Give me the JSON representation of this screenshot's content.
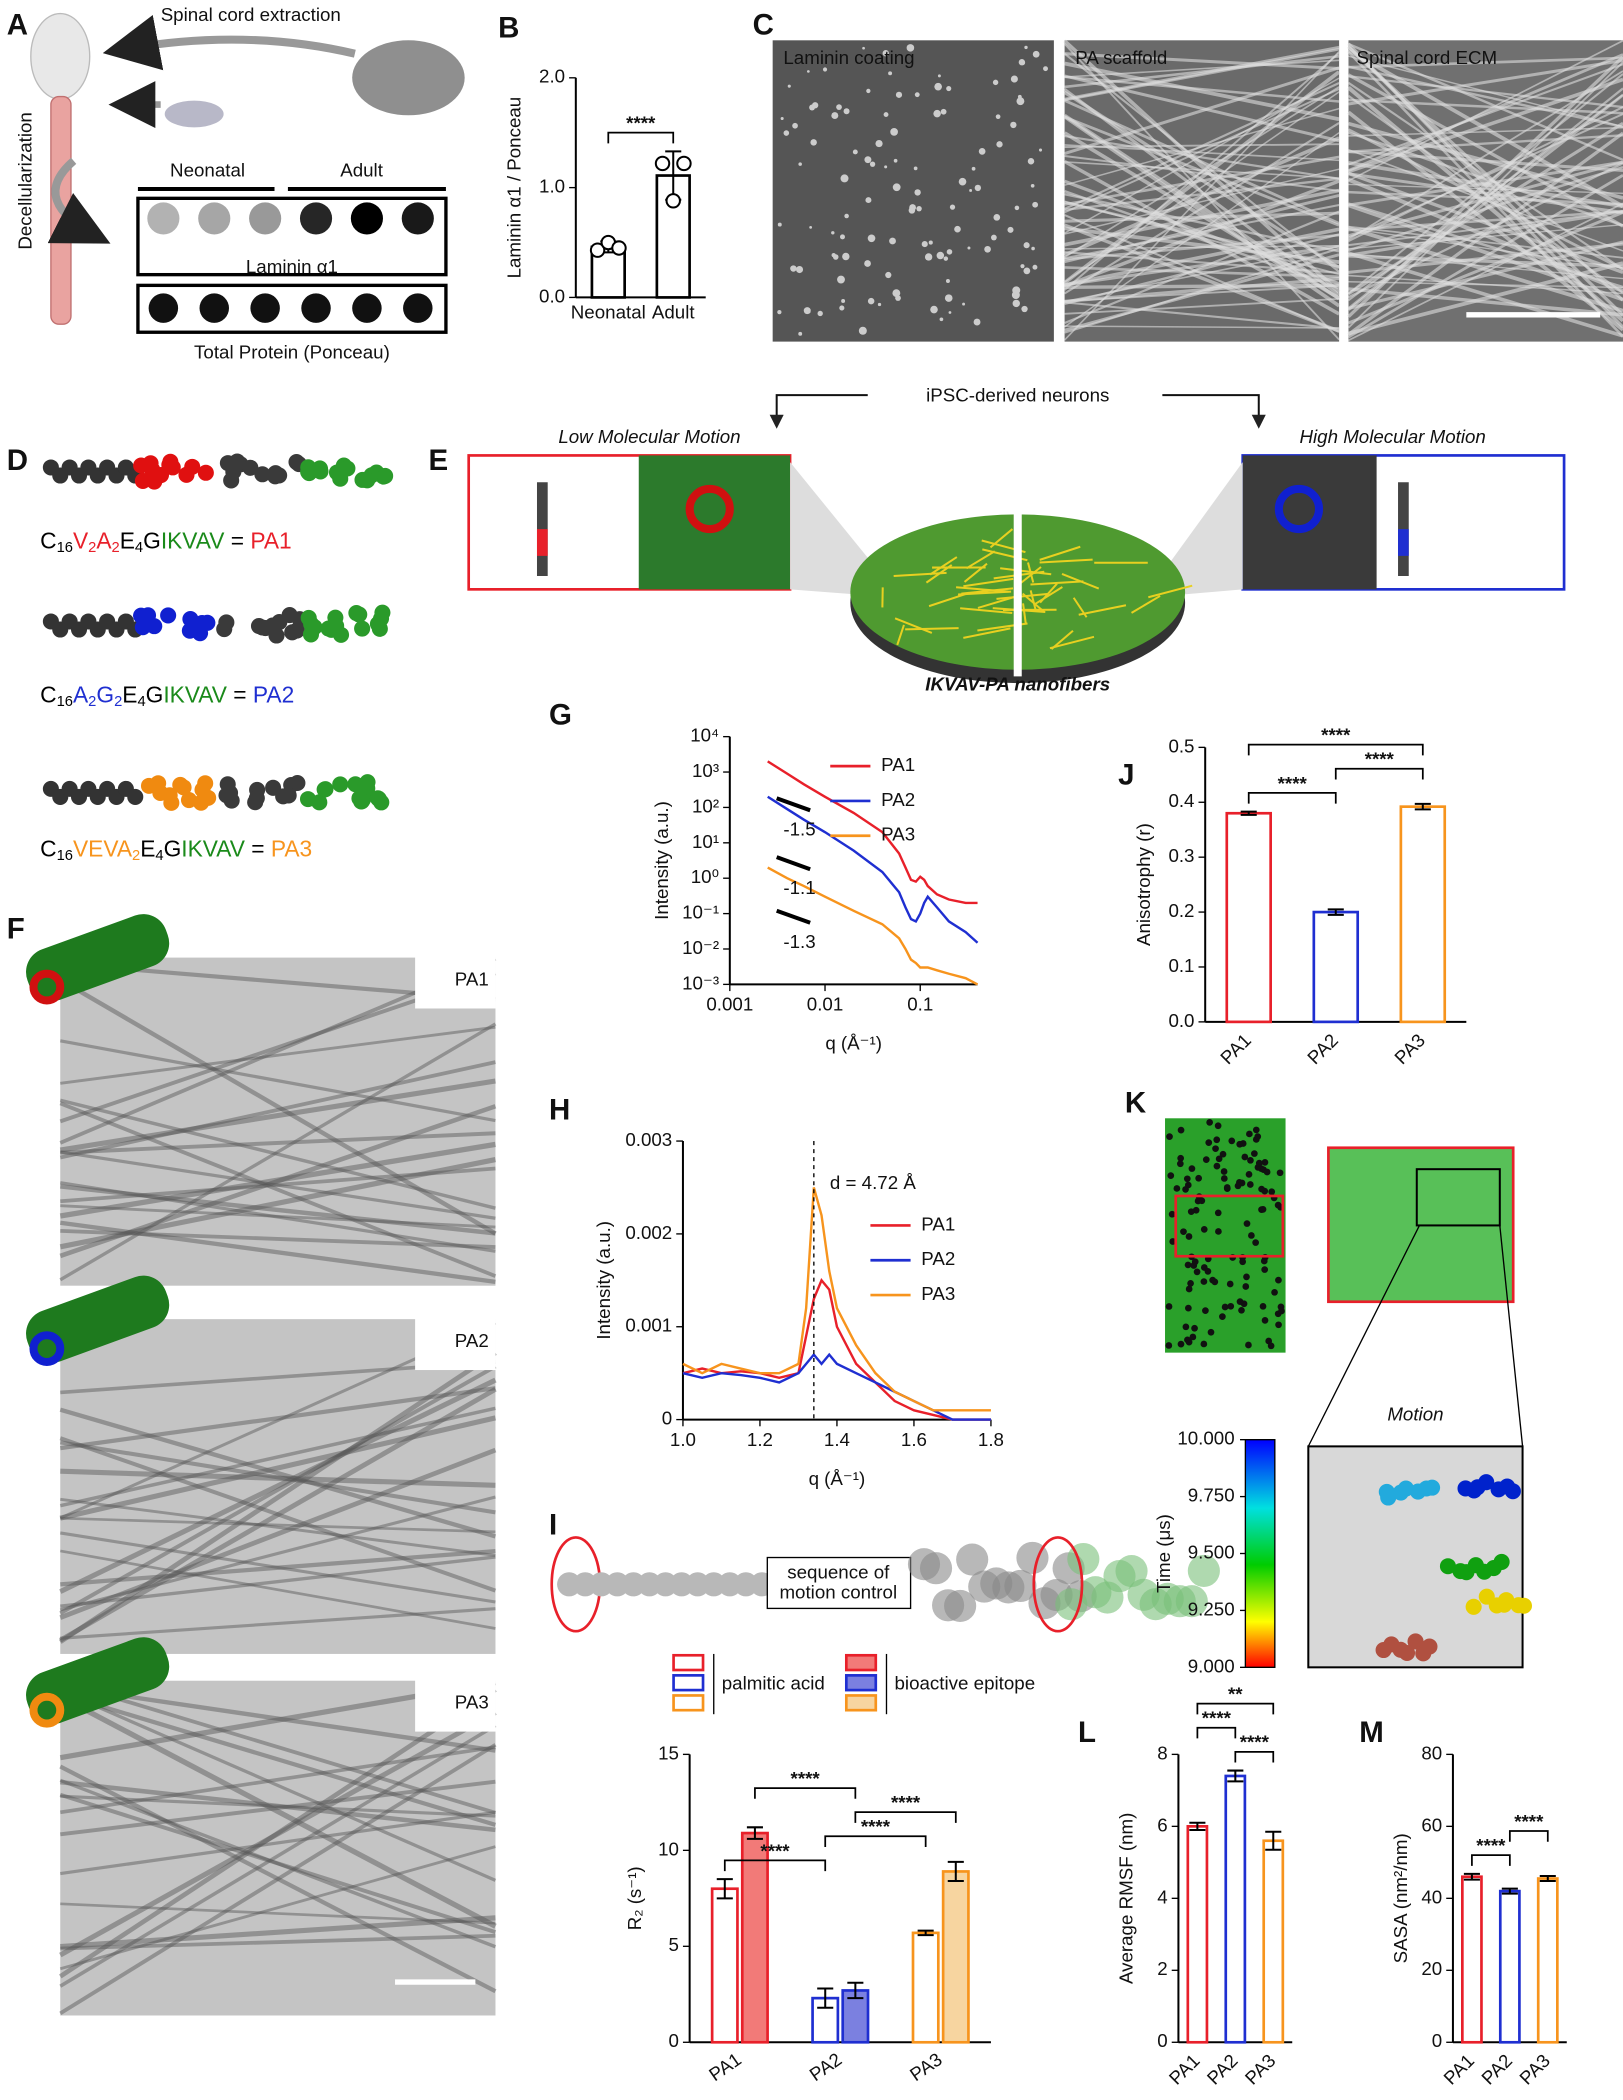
{
  "figure": {
    "panel_labels": [
      "A",
      "B",
      "C",
      "D",
      "E",
      "F",
      "G",
      "H",
      "I",
      "J",
      "K",
      "L",
      "M"
    ],
    "a": {
      "title": "Spinal cord extraction",
      "side": "Decellularization",
      "groups": [
        "Neonatal",
        "Adult"
      ],
      "blot_labels": [
        "Laminin α1",
        "Total Protein (Ponceau)"
      ]
    },
    "c": {
      "labels": [
        "Laminin coating",
        "PA scaffold",
        "Spinal cord ECM"
      ]
    },
    "d": {
      "sequences": [
        [
          {
            "text": "C",
            "color": "#000000"
          },
          {
            "text": "16",
            "color": "#000000",
            "sub": true
          },
          {
            "text": "V",
            "color": "#e8202a"
          },
          {
            "text": "2",
            "color": "#e8202a",
            "sub": true
          },
          {
            "text": "A",
            "color": "#e8202a"
          },
          {
            "text": "2",
            "color": "#e8202a",
            "sub": true
          },
          {
            "text": "E",
            "color": "#000000"
          },
          {
            "text": "4",
            "color": "#000000",
            "sub": true
          },
          {
            "text": "G",
            "color": "#000000"
          },
          {
            "text": "IKVAV",
            "color": "#1a8a1a"
          },
          {
            "text": " = ",
            "color": "#000000"
          },
          {
            "text": "PA1",
            "color": "#e8202a"
          }
        ],
        [
          {
            "text": "C",
            "color": "#000000"
          },
          {
            "text": "16",
            "color": "#000000",
            "sub": true
          },
          {
            "text": "A",
            "color": "#1f2fd1"
          },
          {
            "text": "2",
            "color": "#1f2fd1",
            "sub": true
          },
          {
            "text": "G",
            "color": "#1f2fd1"
          },
          {
            "text": "2",
            "color": "#1f2fd1",
            "sub": true
          },
          {
            "text": "E",
            "color": "#000000"
          },
          {
            "text": "4",
            "color": "#000000",
            "sub": true
          },
          {
            "text": "G",
            "color": "#000000"
          },
          {
            "text": "IKVAV",
            "color": "#1a8a1a"
          },
          {
            "text": " = ",
            "color": "#000000"
          },
          {
            "text": "PA2",
            "color": "#1f2fd1"
          }
        ],
        [
          {
            "text": "C",
            "color": "#000000"
          },
          {
            "text": "16",
            "color": "#000000",
            "sub": true
          },
          {
            "text": "VEVA",
            "color": "#f7941d"
          },
          {
            "text": "2",
            "color": "#f7941d",
            "sub": true
          },
          {
            "text": "E",
            "color": "#000000"
          },
          {
            "text": "4",
            "color": "#000000",
            "sub": true
          },
          {
            "text": "G",
            "color": "#000000"
          },
          {
            "text": "IKVAV",
            "color": "#1a8a1a"
          },
          {
            "text": " = ",
            "color": "#000000"
          },
          {
            "text": "PA3",
            "color": "#f7941d"
          }
        ]
      ]
    },
    "e": {
      "top": "iPSC-derived neurons",
      "left": "Low Molecular Motion",
      "right": "High Molecular Motion",
      "bottom": "IKVAV-PA nanofibers"
    },
    "f": {
      "labels": [
        "PA1",
        "PA2",
        "PA3"
      ]
    },
    "i": {
      "box": [
        "sequence of",
        "motion control"
      ]
    },
    "k": {
      "title": "Motion",
      "colorbar_label": "Time (μs)",
      "colorbar_lim": [
        9,
        10
      ],
      "colorbar_ticks": [
        {
          "value": 10,
          "label": "10.000"
        },
        {
          "value": 9.75,
          "label": "9.750"
        },
        {
          "value": 9.5,
          "label": "9.500"
        },
        {
          "value": 9.25,
          "label": "9.250"
        },
        {
          "value": 9,
          "label": "9.000"
        }
      ]
    }
  },
  "chart_data": [
    {
      "type": "bar",
      "ylabel": "Laminin α1 / Ponceau",
      "categories": [
        "Neonatal",
        "Adult"
      ],
      "values": [
        0.46,
        1.11
      ],
      "errors": [
        0.05,
        0.22
      ],
      "points": [
        [
          0.43,
          0.5,
          0.45
        ],
        [
          1.22,
          0.88,
          1.22
        ]
      ],
      "ylim": [
        0,
        2
      ],
      "yticks": [
        {
          "value": 0,
          "label": "0.0"
        },
        {
          "value": 1,
          "label": "1.0"
        },
        {
          "value": 2,
          "label": "2.0"
        }
      ],
      "colors": [
        "#000000",
        "#000000"
      ],
      "bar_style": "outline",
      "significance": [
        {
          "label": "****",
          "from": 0,
          "to": 1
        }
      ]
    },
    {
      "type": "line",
      "xlabel": "q (Å⁻¹)",
      "ylabel": "Intensity (a.u.)",
      "log_x": true,
      "log_y": true,
      "x": [
        0.0025,
        0.004,
        0.006,
        0.01,
        0.02,
        0.04,
        0.06,
        0.07,
        0.08,
        0.09,
        0.1,
        0.11,
        0.12,
        0.15,
        0.2,
        0.3,
        0.4
      ],
      "series": [
        {
          "name": "PA1",
          "color": "#e8202a",
          "values": [
            2000,
            900,
            450,
            200,
            70,
            20,
            5,
            2,
            0.9,
            0.8,
            1.1,
            0.9,
            0.6,
            0.35,
            0.25,
            0.2,
            0.2
          ]
        },
        {
          "name": "PA2",
          "color": "#1f2fd1",
          "values": [
            200,
            90,
            45,
            20,
            6,
            1.5,
            0.4,
            0.15,
            0.07,
            0.06,
            0.1,
            0.2,
            0.3,
            0.15,
            0.06,
            0.03,
            0.015
          ]
        },
        {
          "name": "PA3",
          "color": "#f7941d",
          "values": [
            2,
            1,
            0.6,
            0.3,
            0.12,
            0.05,
            0.02,
            0.01,
            0.005,
            0.004,
            0.003,
            0.003,
            0.003,
            0.0025,
            0.002,
            0.0015,
            0.001
          ]
        }
      ],
      "xlim": [
        0.001,
        0.4
      ],
      "ylim": [
        0.001,
        10000
      ],
      "xticks": [
        0.001,
        0.01,
        0.1
      ],
      "yticks": [
        {
          "value": 0.001,
          "label": "10⁻³"
        },
        {
          "value": 0.01,
          "label": "10⁻²"
        },
        {
          "value": 0.1,
          "label": "10⁻¹"
        },
        {
          "value": 1,
          "label": "10⁰"
        },
        {
          "value": 10,
          "label": "10¹"
        },
        {
          "value": 100,
          "label": "10²"
        },
        {
          "value": 1000,
          "label": "10³"
        },
        {
          "value": 10000,
          "label": "10⁴"
        }
      ],
      "annotations": [
        "-1.5",
        "-1.1",
        "-1.3"
      ]
    },
    {
      "type": "line",
      "xlabel": "q (Å⁻¹)",
      "ylabel": "Intensity (a.u.)",
      "x": [
        1.0,
        1.05,
        1.1,
        1.15,
        1.2,
        1.25,
        1.3,
        1.32,
        1.34,
        1.36,
        1.38,
        1.4,
        1.45,
        1.5,
        1.55,
        1.6,
        1.65,
        1.7,
        1.75,
        1.8
      ],
      "series": [
        {
          "name": "PA1",
          "color": "#e8202a",
          "values": [
            0.0005,
            0.00055,
            0.0005,
            0.00052,
            0.0005,
            0.00045,
            0.0005,
            0.0009,
            0.0013,
            0.0015,
            0.0014,
            0.001,
            0.0006,
            0.0004,
            0.0002,
            0.0001,
            5e-05,
            0,
            0,
            0
          ]
        },
        {
          "name": "PA2",
          "color": "#1f2fd1",
          "values": [
            0.0005,
            0.00045,
            0.0005,
            0.00048,
            0.00045,
            0.0004,
            0.0005,
            0.0006,
            0.0007,
            0.0006,
            0.0007,
            0.0006,
            0.0005,
            0.0004,
            0.0003,
            0.0002,
            0.0001,
            0,
            0,
            0
          ]
        },
        {
          "name": "PA3",
          "color": "#f7941d",
          "values": [
            0.0006,
            0.0005,
            0.0006,
            0.00055,
            0.0005,
            0.0005,
            0.0006,
            0.0012,
            0.0025,
            0.0022,
            0.0016,
            0.0012,
            0.0008,
            0.0005,
            0.0003,
            0.0002,
            0.0001,
            0.0001,
            0.0001,
            0.0001
          ]
        }
      ],
      "xlim": [
        1.0,
        1.8
      ],
      "ylim": [
        0,
        0.003
      ],
      "xticks": [
        {
          "value": 1,
          "label": "1.0"
        },
        1.2,
        1.4,
        1.6,
        1.8
      ],
      "yticks": [
        0,
        0.001,
        0.002,
        0.003
      ],
      "vline": 1.34,
      "annotation": "d = 4.72 Å"
    },
    {
      "type": "bar",
      "ylabel": "Anisotrophy (r)",
      "categories": [
        "PA1",
        "PA2",
        "PA3"
      ],
      "values": [
        0.38,
        0.2,
        0.392
      ],
      "errors": [
        0.003,
        0.005,
        0.005
      ],
      "ylim": [
        0,
        0.5
      ],
      "yticks": [
        {
          "value": 0,
          "label": "0.0"
        },
        0.1,
        0.2,
        0.3,
        0.4,
        0.5
      ],
      "colors": [
        "#e8202a",
        "#1f2fd1",
        "#f7941d"
      ],
      "bar_style": "outline",
      "significance": [
        {
          "label": "****",
          "from": 0,
          "to": 1
        },
        {
          "label": "****",
          "from": 1,
          "to": 2
        },
        {
          "label": "****",
          "from": 0,
          "to": 2
        }
      ]
    },
    {
      "type": "bar",
      "ylabel": "R₂ (s⁻¹)",
      "categories": [
        "PA1",
        "PA2",
        "PA3"
      ],
      "colors": [
        "#e8202a",
        "#1f2fd1",
        "#f7941d"
      ],
      "series": [
        {
          "name": "palmitic acid",
          "style": "outline",
          "values": [
            8.0,
            2.3,
            5.7
          ],
          "errors": [
            0.5,
            0.5,
            0.12
          ]
        },
        {
          "name": "bioactive epitope",
          "style": "filled",
          "fill_colors": [
            "#f27a78",
            "#7b80e0",
            "#f7d5a0"
          ],
          "values": [
            10.9,
            2.7,
            8.9
          ],
          "errors": [
            0.3,
            0.4,
            0.5
          ]
        }
      ],
      "ylim": [
        0,
        15
      ],
      "yticks": [
        0,
        5,
        10,
        15
      ],
      "significance": [
        {
          "label": "****",
          "from": [
            0,
            0
          ],
          "to": [
            0,
            1
          ]
        },
        {
          "label": "****",
          "from": [
            0,
            1
          ],
          "to": [
            0,
            2
          ]
        },
        {
          "label": "****",
          "from": [
            1,
            1
          ],
          "to": [
            1,
            2
          ]
        },
        {
          "label": "****",
          "from": [
            1,
            0
          ],
          "to": [
            1,
            1
          ]
        }
      ]
    },
    {
      "type": "bar",
      "ylabel": "Average RMSF (nm)",
      "categories": [
        "PA1",
        "PA2",
        "PA3"
      ],
      "values": [
        6.0,
        7.4,
        5.6
      ],
      "errors": [
        0.1,
        0.15,
        0.25
      ],
      "ylim": [
        0,
        8
      ],
      "yticks": [
        0,
        2,
        4,
        6,
        8
      ],
      "colors": [
        "#e8202a",
        "#1f2fd1",
        "#f7941d"
      ],
      "bar_style": "outline",
      "significance": [
        {
          "label": "****",
          "from": 0,
          "to": 1
        },
        {
          "label": "****",
          "from": 1,
          "to": 2
        },
        {
          "label": "**",
          "from": 0,
          "to": 2
        }
      ]
    },
    {
      "type": "bar",
      "ylabel": "SASA (nm²/nm)",
      "categories": [
        "PA1",
        "PA2",
        "PA3"
      ],
      "values": [
        46,
        42,
        45.5
      ],
      "errors": [
        0.8,
        0.7,
        0.7
      ],
      "ylim": [
        0,
        80
      ],
      "yticks": [
        0,
        20,
        40,
        60,
        80
      ],
      "colors": [
        "#e8202a",
        "#1f2fd1",
        "#f7941d"
      ],
      "bar_style": "outline",
      "significance": [
        {
          "label": "****",
          "from": 0,
          "to": 1
        },
        {
          "label": "****",
          "from": 1,
          "to": 2
        }
      ]
    }
  ]
}
